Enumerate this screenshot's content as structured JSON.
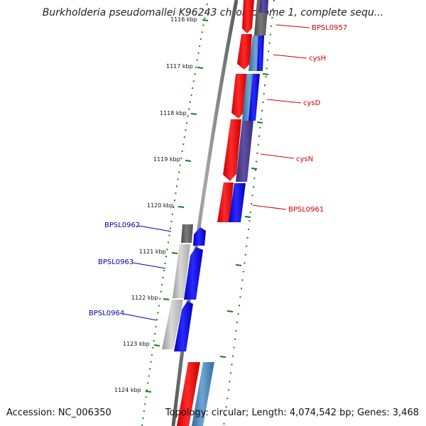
{
  "title": "Burkholderia pseudomallei K96243 chromosome 1, complete sequ...",
  "accession": "Accession: NC_006350",
  "topology": "Topology: circular; Length: 4,074,542 bp; Genes: 3,468",
  "colors": {
    "backbone": "#7f7f7f",
    "tick": "#1a7a1a",
    "forward_gene": "#ff0000",
    "reverse_gene": "#0000ff",
    "forward_label": "#cc0000",
    "reverse_label": "#0000aa",
    "cds_grey": "#bdbdbd",
    "cds_dark": "#606060",
    "cds_steel": "#4682b4",
    "cds_purple": "#4b3e8f"
  },
  "ticks": [
    {
      "label": "1116 kbp"
    },
    {
      "label": "1117 kbp"
    },
    {
      "label": "1118 kbp"
    },
    {
      "label": "1119 kbp"
    },
    {
      "label": "1120 kbp"
    },
    {
      "label": "1121 kbp"
    },
    {
      "label": "1122 kbp"
    },
    {
      "label": "1123 kbp"
    },
    {
      "label": "1124 kbp"
    }
  ],
  "forward_labels": [
    {
      "text": "BPSL0957"
    },
    {
      "text": "cysH"
    },
    {
      "text": "cysD"
    },
    {
      "text": "cysN"
    },
    {
      "text": "BPSL0961"
    }
  ],
  "reverse_labels": [
    {
      "text": "BPSL0962"
    },
    {
      "text": "BPSL0963"
    },
    {
      "text": "BPSL0964"
    }
  ]
}
